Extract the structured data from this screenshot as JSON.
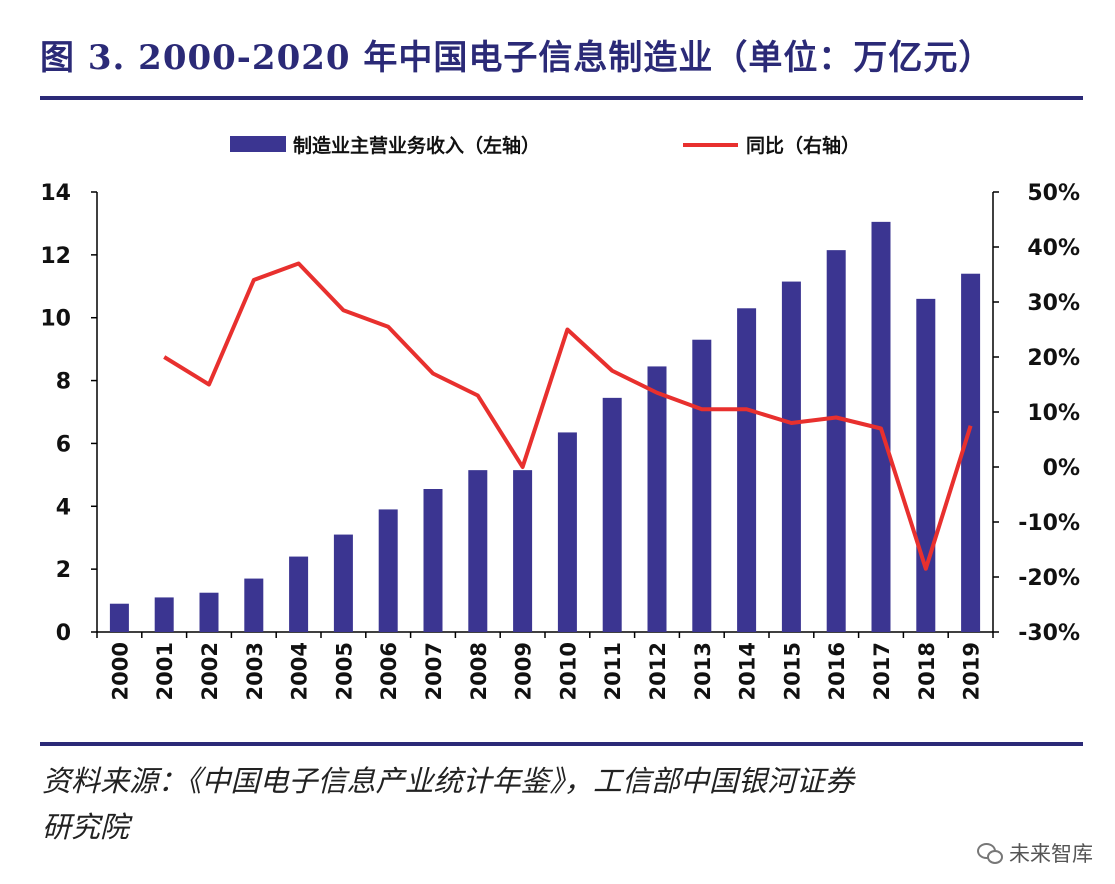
{
  "title": "图 3. 2000-2020 年中国电子信息制造业（单位：万亿元）",
  "source_line1": "资料来源：《中国电子信息产业统计年鉴》，工信部中国银河证券",
  "source_line2": "研究院",
  "watermark": "未来智库",
  "colors": {
    "bar": "#3b3591",
    "line": "#e8302e",
    "rule": "#2b2a77"
  },
  "chart_data": {
    "type": "bar",
    "categories": [
      "2000",
      "2001",
      "2002",
      "2003",
      "2004",
      "2005",
      "2006",
      "2007",
      "2008",
      "2009",
      "2010",
      "2011",
      "2012",
      "2013",
      "2014",
      "2015",
      "2016",
      "2017",
      "2018",
      "2019"
    ],
    "series": [
      {
        "name": "制造业主营业务收入（左轴）",
        "type": "bar",
        "axis": "left",
        "values": [
          0.9,
          1.1,
          1.25,
          1.7,
          2.4,
          3.1,
          3.9,
          4.55,
          5.15,
          5.15,
          6.35,
          7.45,
          8.45,
          9.3,
          10.3,
          11.15,
          12.15,
          13.05,
          10.6,
          11.4
        ]
      },
      {
        "name": "同比（右轴）",
        "type": "line",
        "axis": "right",
        "values": [
          null,
          20,
          15,
          34,
          37,
          28.5,
          25.5,
          17,
          13,
          0,
          25,
          17.5,
          13.5,
          10.5,
          10.5,
          8,
          9,
          7,
          -18.5,
          7.5
        ]
      }
    ],
    "y_left": {
      "min": 0,
      "max": 14,
      "ticks": [
        "0",
        "2",
        "4",
        "6",
        "8",
        "10",
        "12",
        "14"
      ]
    },
    "y_right": {
      "min": -30,
      "max": 50,
      "ticks": [
        "-30%",
        "-20%",
        "-10%",
        "0%",
        "10%",
        "20%",
        "30%",
        "40%",
        "50%"
      ]
    },
    "legend_position": "top",
    "grid": false
  }
}
